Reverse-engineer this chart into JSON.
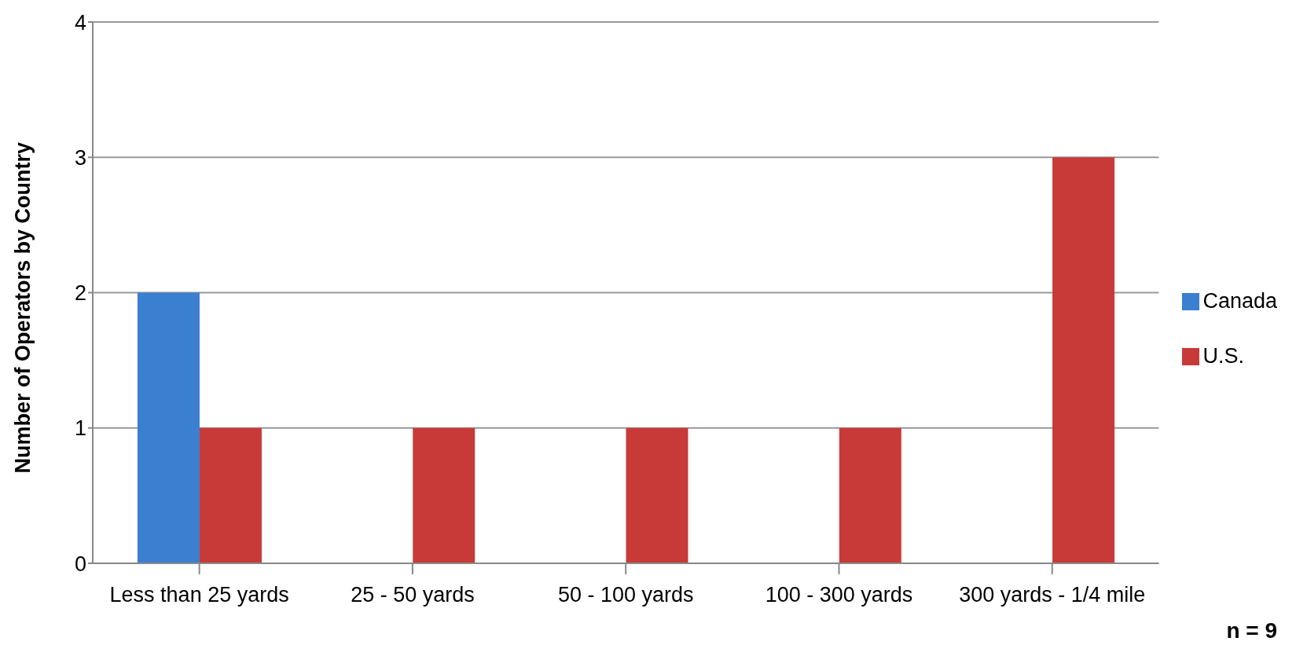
{
  "chart_data": {
    "type": "bar",
    "ylabel": "Number of Operators by Country",
    "categories": [
      "Less than 25 yards",
      "25 - 50 yards",
      "50 - 100 yards",
      "100 - 300 yards",
      "300 yards - 1/4 mile"
    ],
    "series": [
      {
        "name": "Canada",
        "color": "#3a7fd0",
        "values": [
          2,
          null,
          null,
          null,
          null
        ]
      },
      {
        "name": "U.S.",
        "color": "#c83a37",
        "values": [
          1,
          1,
          1,
          1,
          3
        ]
      }
    ],
    "ylim": [
      0,
      4
    ],
    "yticks": [
      0,
      1,
      2,
      3,
      4
    ],
    "grid": "y",
    "legend": "right",
    "annotations": [
      "n = 9"
    ]
  }
}
